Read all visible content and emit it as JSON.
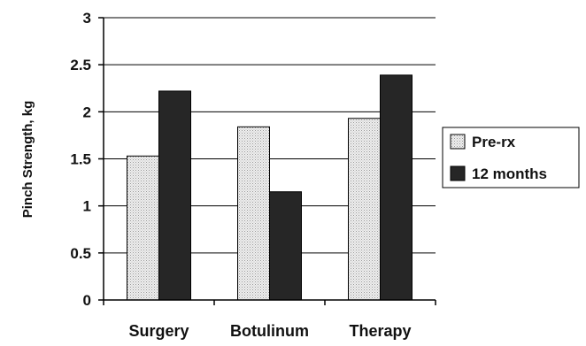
{
  "chart_data": {
    "type": "bar",
    "title": "",
    "xlabel": "",
    "ylabel": "Pinch Strength, kg",
    "ylim": [
      0,
      3
    ],
    "yticks": [
      "0",
      "0.5",
      "1",
      "1.5",
      "2",
      "2.5",
      "3"
    ],
    "categories": [
      "Surgery",
      "Botulinum",
      "Therapy"
    ],
    "series": [
      {
        "name": "Pre-rx",
        "values": [
          1.53,
          1.84,
          1.93
        ],
        "color": "#e4e4e4",
        "pattern": "dotted"
      },
      {
        "name": "12 months",
        "values": [
          2.22,
          1.15,
          2.39
        ],
        "color": "#262626",
        "pattern": "solid"
      }
    ],
    "grid": true,
    "legend": "right"
  }
}
